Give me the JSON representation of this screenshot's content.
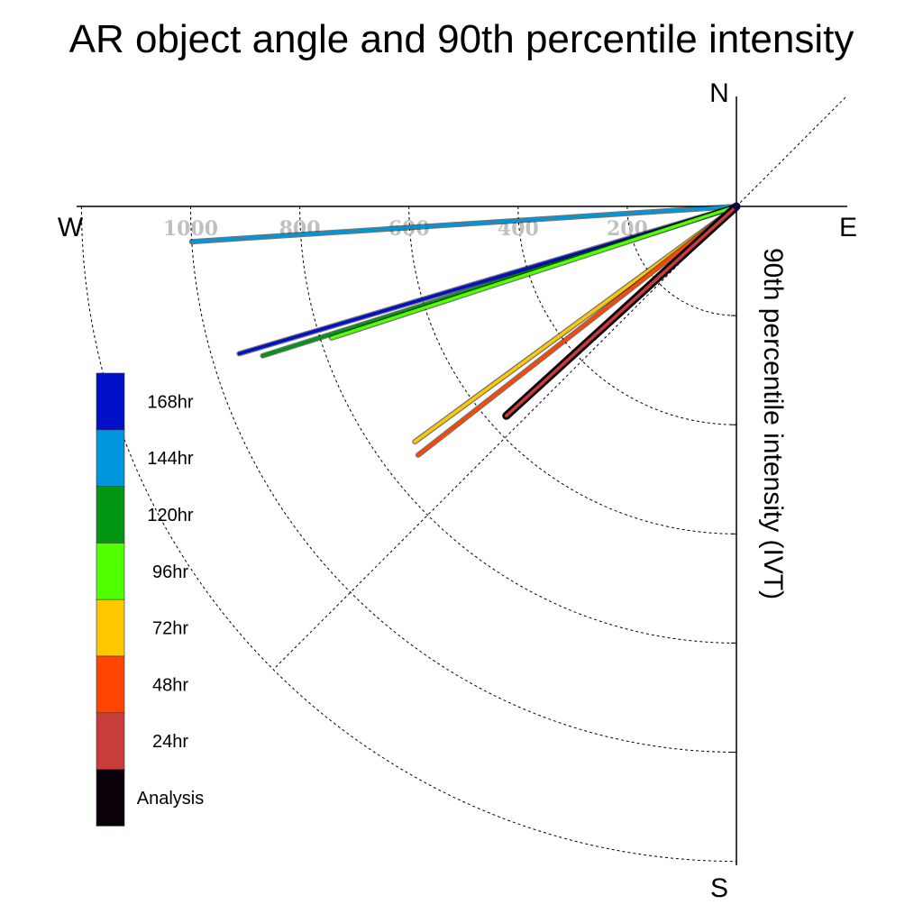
{
  "chart_data": {
    "type": "line",
    "title": "AR object angle and 90th percentile intensity",
    "ylabel": "90th percentile intensity (IVT)",
    "compass": {
      "north": "N",
      "south": "S",
      "east": "E",
      "west": "W"
    },
    "radial_ticks": [
      "200",
      "400",
      "600",
      "800",
      "1000"
    ],
    "radial_max": 1200,
    "grid": true,
    "legend_position": "left",
    "series": [
      {
        "name": "168hr",
        "color": "#0010c8",
        "angle_deg": 196.5,
        "intensity": 950
      },
      {
        "name": "144hr",
        "color": "#0096dc",
        "angle_deg": 183.7,
        "intensity": 1000
      },
      {
        "name": "120hr",
        "color": "#009614",
        "angle_deg": 197.5,
        "intensity": 910
      },
      {
        "name": "96hr",
        "color": "#50ff00",
        "angle_deg": 198.0,
        "intensity": 780
      },
      {
        "name": "72hr",
        "color": "#ffc800",
        "angle_deg": 216.2,
        "intensity": 730
      },
      {
        "name": "48hr",
        "color": "#ff4600",
        "angle_deg": 218.0,
        "intensity": 740
      },
      {
        "name": "24hr",
        "color": "#c83c3c",
        "angle_deg": 222.3,
        "intensity": 570
      },
      {
        "name": "Analysis",
        "color": "#0a000a",
        "angle_deg": 222.3,
        "intensity": 570
      }
    ]
  }
}
